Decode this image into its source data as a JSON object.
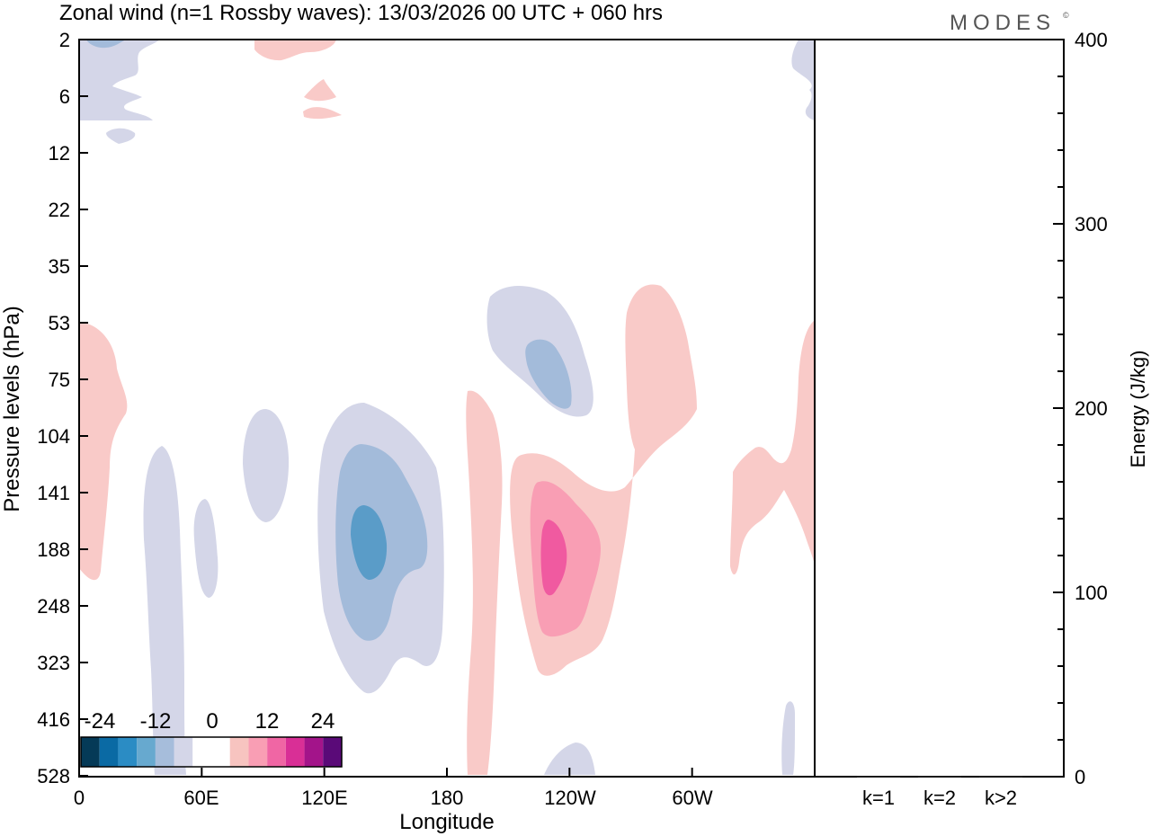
{
  "chart_data": {
    "type": "heatmap",
    "title": "Zonal wind (n=1 Rossby waves):  13/03/2026  00 UTC  + 060 hrs",
    "brand": "MODES",
    "brand_mark": "©",
    "xlabel": "Longitude",
    "ylabel": "Pressure levels (hPa)",
    "x_ticks": [
      "0",
      "60E",
      "120E",
      "180",
      "120W",
      "60W"
    ],
    "y_ticks": [
      "2",
      "6",
      "12",
      "22",
      "35",
      "53",
      "75",
      "104",
      "141",
      "188",
      "248",
      "323",
      "416",
      "528"
    ],
    "colorbar": {
      "labels": [
        "-24",
        "-12",
        "0",
        "12",
        "24"
      ],
      "colors": [
        "#053a57",
        "#0a6aa4",
        "#2b8cc4",
        "#67a9cf",
        "#a6bddb",
        "#d4d6e8",
        "#ffffff",
        "#ffffff",
        "#f7c4c0",
        "#f99eb4",
        "#f066a4",
        "#d92f96",
        "#a3148a",
        "#5a0a78"
      ]
    },
    "field_colors": {
      "neg1": "#d4d6e8",
      "neg2": "#a3bbda",
      "neg3": "#5a9cc8",
      "pos1": "#f9cac8",
      "pos2": "#f99eb4",
      "pos3": "#f05aa0"
    },
    "features": [
      {
        "sign": "negative",
        "levels": 3,
        "lon_center": 143,
        "pressure_center": 175
      },
      {
        "sign": "negative",
        "levels": 2,
        "lon_center": 237,
        "pressure_center": 80
      },
      {
        "sign": "positive",
        "levels": 3,
        "lon_center": 247,
        "pressure_center": 185
      },
      {
        "sign": "positive",
        "levels": 1,
        "lon_center": 280,
        "pressure_center": 90
      },
      {
        "sign": "positive",
        "levels": 1,
        "lon_center": 340,
        "pressure_center": 150
      },
      {
        "sign": "positive",
        "levels": 1,
        "lon_center": 10,
        "pressure_center": 100
      }
    ],
    "energy_panel": {
      "ylabel": "Energy (J/kg)",
      "ylim": [
        0,
        400
      ],
      "y_ticks": [
        "0",
        "100",
        "200",
        "300",
        "400"
      ],
      "categories": [
        "k=1",
        "k=2",
        "k>2"
      ],
      "values": [
        0.3,
        0.4,
        0.5
      ]
    }
  }
}
